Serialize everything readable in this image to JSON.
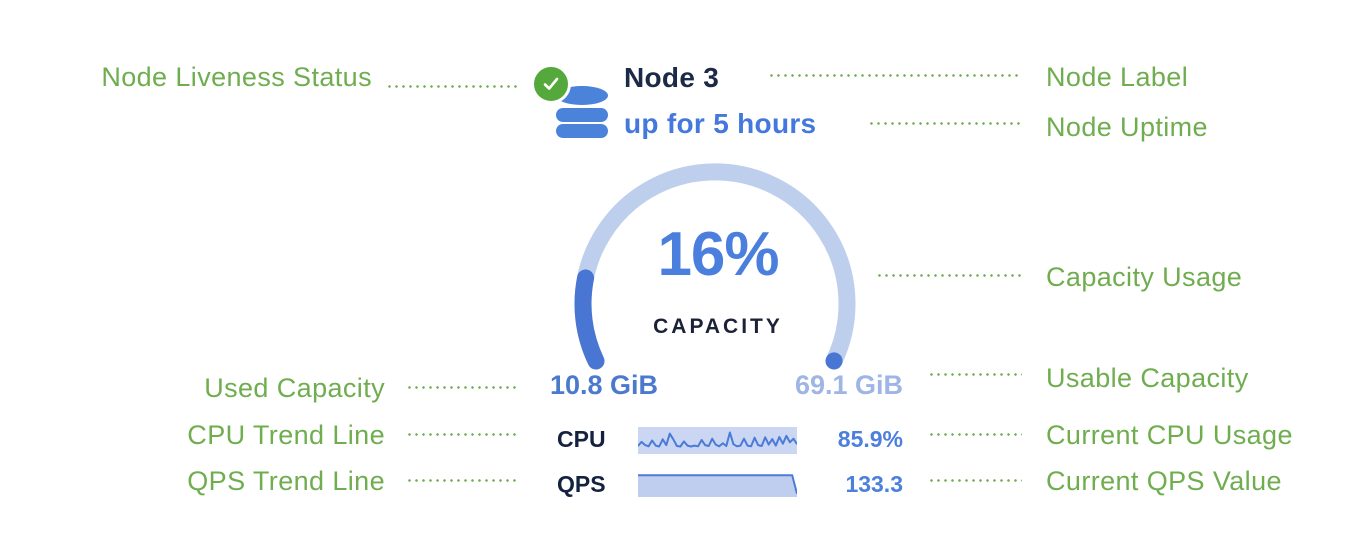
{
  "colors": {
    "annotation_green": "#6FAD4F",
    "navy": "#1B2A47",
    "uptime_blue": "#4478DD",
    "arc_track": "#BECFEE",
    "arc_fill": "#4A76D3",
    "percent_blue": "#4B7FDE",
    "used_blue": "#4A79CE",
    "usable_blue": "#9EB5E5",
    "status_green": "#55A93C",
    "db_blue": "#4B82DA",
    "spark_line": "#4A7BD9",
    "spark_fill": "#BFCEEF",
    "spark_bg": "#CBD7F2"
  },
  "annotations": {
    "left": [
      {
        "label": "Node Liveness Status"
      },
      {
        "label": "Used Capacity"
      },
      {
        "label": "CPU Trend Line"
      },
      {
        "label": "QPS Trend Line"
      }
    ],
    "right": [
      {
        "label": "Node Label"
      },
      {
        "label": "Node Uptime"
      },
      {
        "label": "Capacity Usage"
      },
      {
        "label": "Usable Capacity"
      },
      {
        "label": "Current CPU Usage"
      },
      {
        "label": "Current QPS Value"
      }
    ]
  },
  "node_card": {
    "name": "Node 3",
    "uptime": "up for 5 hours",
    "status_icon": "green-checkmark",
    "node_icon": "database",
    "gauge": {
      "percent": 16,
      "percent_label": "16%",
      "label": "CAPACITY",
      "used": "10.8 GiB",
      "usable": "69.1 GiB"
    },
    "metrics": [
      {
        "label": "CPU",
        "value": "85.9%",
        "fill": false,
        "sparkline": [
          0.26,
          0.44,
          0.3,
          0.25,
          0.5,
          0.28,
          0.24,
          0.55,
          0.3,
          0.8,
          0.55,
          0.26,
          0.24,
          0.46,
          0.28,
          0.24,
          0.28,
          0.25,
          0.52,
          0.3,
          0.26,
          0.58,
          0.32,
          0.25,
          0.38,
          0.26,
          0.85,
          0.34,
          0.25,
          0.28,
          0.58,
          0.28,
          0.25,
          0.62,
          0.3,
          0.26,
          0.64,
          0.32,
          0.56,
          0.28,
          0.65,
          0.36,
          0.7,
          0.42,
          0.58,
          0.34
        ]
      },
      {
        "label": "QPS",
        "value": "133.3",
        "fill": true,
        "sparkline": [
          0.9,
          0.9,
          0.9,
          0.9,
          0.9,
          0.9,
          0.9,
          0.9,
          0.9,
          0.9,
          0.9,
          0.9,
          0.9,
          0.9,
          0.9,
          0.9,
          0.9,
          0.9,
          0.9,
          0.9,
          0.9,
          0.9,
          0.9,
          0.9,
          0.9,
          0.9,
          0.9,
          0.9,
          0.9,
          0.9,
          0.9,
          0.9,
          0.9,
          0.06
        ]
      }
    ]
  }
}
